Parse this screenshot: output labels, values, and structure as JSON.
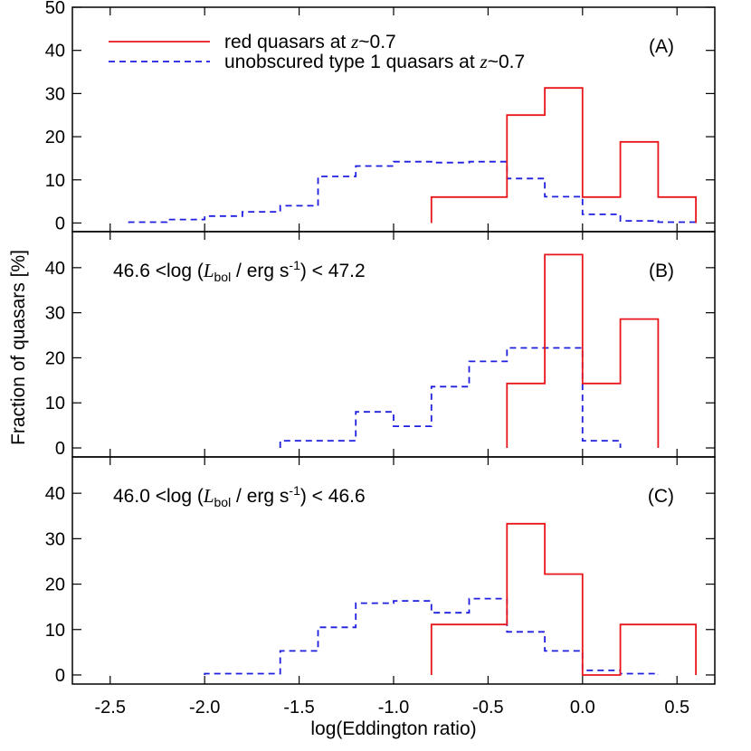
{
  "chart_data": {
    "type": "histogram-step",
    "xlabel": "log(Eddington ratio)",
    "ylabel": "Fraction of quasars [%]",
    "xlim": [
      -2.7,
      0.7
    ],
    "x_ticks": [
      -2.5,
      -2.0,
      -1.5,
      -1.0,
      -0.5,
      0.0,
      0.5
    ],
    "x_tick_labels": [
      "-2.5",
      "-2.0",
      "-1.5",
      "-1.0",
      "-0.5",
      "0.0",
      "0.5"
    ],
    "grid": false,
    "colors": {
      "red": "#e8161b",
      "blue": "#1f1fe0"
    },
    "legend": {
      "placement": "top-left",
      "entries": [
        {
          "series": "red",
          "parts": [
            "red quasars at ",
            "z",
            "~0.7"
          ]
        },
        {
          "series": "blue",
          "parts": [
            "unobscured type 1 quasars at ",
            "z",
            "~0.7"
          ]
        }
      ]
    },
    "panels": [
      {
        "tag": "(A)",
        "ylim": [
          -2,
          50
        ],
        "y_ticks": [
          0,
          10,
          20,
          30,
          40,
          50
        ],
        "y_tick_labels": [
          "0",
          "10",
          "20",
          "30",
          "40",
          "50"
        ],
        "series": [
          {
            "key": "red",
            "style": "solid",
            "bin_edges": [
              -0.8,
              -0.6,
              -0.4,
              -0.2,
              0.0,
              0.2,
              0.4,
              0.6
            ],
            "values": [
              6.0,
              6.0,
              25.0,
              31.3,
              6.0,
              18.8,
              6.0
            ]
          },
          {
            "key": "blue",
            "style": "dashed",
            "bin_edges": [
              -2.4,
              -2.2,
              -2.0,
              -1.8,
              -1.6,
              -1.4,
              -1.2,
              -1.0,
              -0.8,
              -0.6,
              -0.4,
              -0.2,
              0.0,
              0.2,
              0.4,
              0.6
            ],
            "values": [
              0.2,
              0.8,
              1.6,
              2.6,
              4.0,
              10.8,
              13.2,
              14.2,
              14.0,
              14.2,
              10.3,
              6.1,
              2.0,
              0.5,
              0.2
            ]
          }
        ]
      },
      {
        "tag": "(B)",
        "title_parts": [
          "46.6 <log (",
          "L",
          "bol",
          " / erg s",
          "-1",
          ") < 47.2"
        ],
        "ylim": [
          -2,
          48
        ],
        "y_ticks": [
          0,
          10,
          20,
          30,
          40
        ],
        "y_tick_labels": [
          "0",
          "10",
          "20",
          "30",
          "40"
        ],
        "series": [
          {
            "key": "red",
            "style": "solid",
            "bin_edges": [
              -0.4,
              -0.2,
              0.0,
              0.2,
              0.4
            ],
            "values": [
              14.3,
              42.9,
              14.3,
              28.6
            ]
          },
          {
            "key": "blue",
            "style": "dashed",
            "bin_edges": [
              -1.6,
              -1.4,
              -1.2,
              -1.0,
              -0.8,
              -0.6,
              -0.4,
              -0.2,
              0.0,
              0.2
            ],
            "values": [
              1.6,
              1.6,
              8.0,
              4.8,
              13.6,
              19.2,
              22.2,
              22.2,
              1.6
            ]
          }
        ]
      },
      {
        "tag": "(C)",
        "title_parts": [
          "46.0 <log (",
          "L",
          "bol",
          " / erg s",
          "-1",
          ") < 46.6"
        ],
        "ylim": [
          -2,
          48
        ],
        "y_ticks": [
          0,
          10,
          20,
          30,
          40
        ],
        "y_tick_labels": [
          "0",
          "10",
          "20",
          "30",
          "40"
        ],
        "series": [
          {
            "key": "red",
            "style": "solid",
            "bin_edges": [
              -0.8,
              -0.6,
              -0.4,
              -0.2,
              0.0,
              0.2,
              0.4,
              0.6
            ],
            "values": [
              11.1,
              11.1,
              33.3,
              22.2,
              0.0,
              11.1,
              11.1
            ]
          },
          {
            "key": "blue",
            "style": "dashed",
            "bin_edges": [
              -2.0,
              -1.8,
              -1.6,
              -1.4,
              -1.2,
              -1.0,
              -0.8,
              -0.6,
              -0.4,
              -0.2,
              0.0,
              0.2,
              0.4
            ],
            "values": [
              0.3,
              0.3,
              5.3,
              10.5,
              15.8,
              16.3,
              13.7,
              16.8,
              9.5,
              5.3,
              1.0,
              0.3
            ]
          }
        ]
      }
    ]
  }
}
